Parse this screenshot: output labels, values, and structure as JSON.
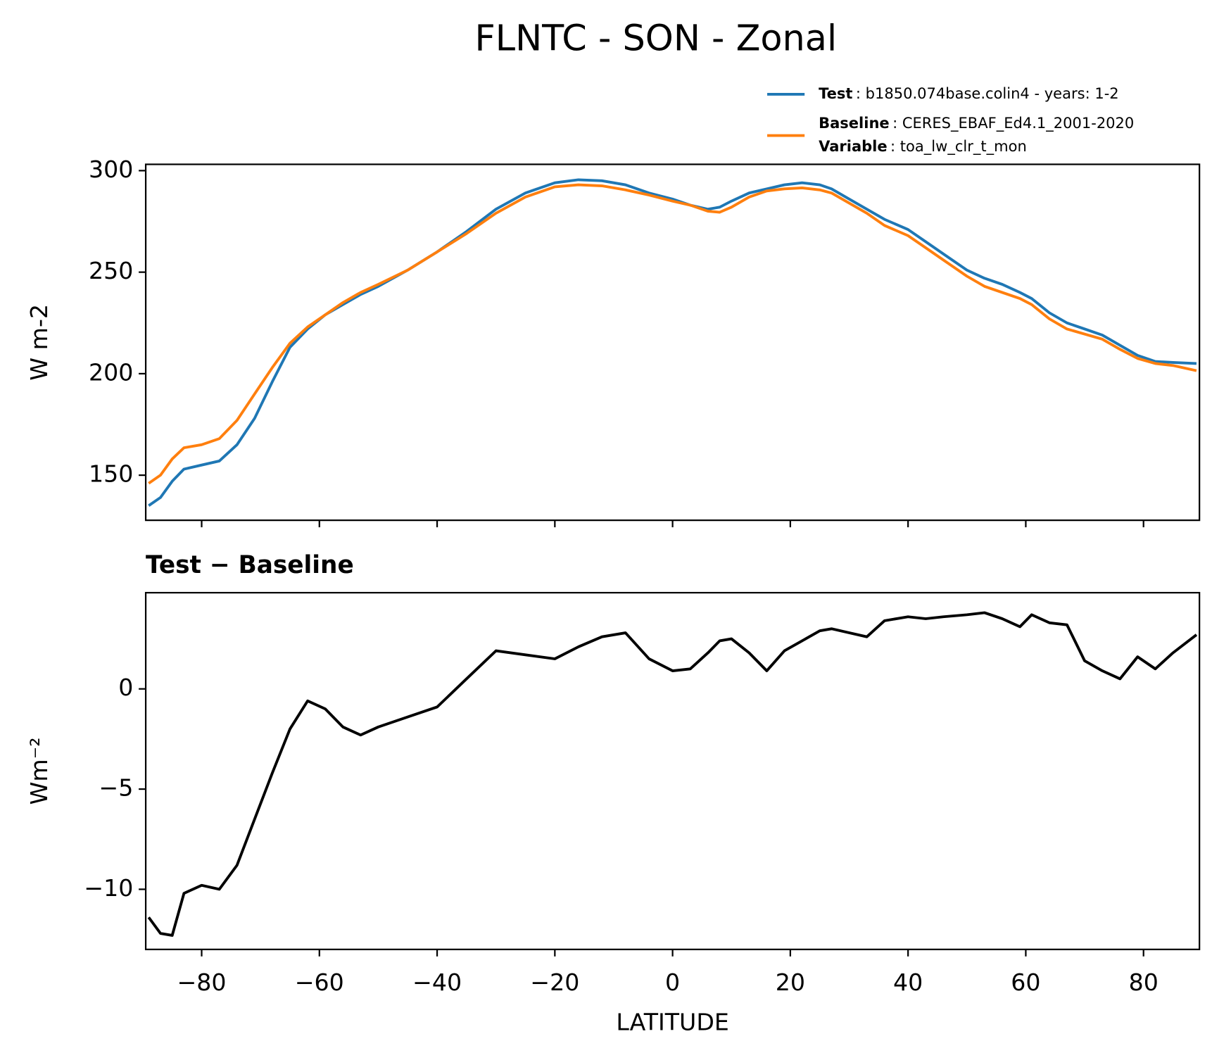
{
  "title": "FLNTC - SON - Zonal",
  "chart_data": [
    {
      "type": "line",
      "ylabel": "W m-2",
      "x": [
        -89,
        -87,
        -85,
        -83,
        -80,
        -77,
        -74,
        -71,
        -68,
        -65,
        -62,
        -59,
        -56,
        -53,
        -50,
        -45,
        -40,
        -35,
        -30,
        -25,
        -20,
        -16,
        -12,
        -8,
        -4,
        0,
        3,
        6,
        8,
        10,
        13,
        16,
        19,
        22,
        25,
        27,
        30,
        33,
        36,
        40,
        43,
        46,
        50,
        53,
        56,
        59,
        61,
        64,
        67,
        70,
        73,
        76,
        79,
        82,
        85,
        89
      ],
      "series": [
        {
          "name": "Test",
          "description": ": b1850.074base.colin4 - years: 1-2",
          "color": "#1f77b4",
          "values": [
            135,
            139,
            147,
            153,
            155,
            157,
            165,
            178,
            196,
            213,
            222,
            229,
            234,
            239,
            243,
            251,
            260,
            270,
            281,
            289,
            294,
            295.5,
            295,
            293,
            289,
            286,
            283,
            281,
            282,
            285,
            289,
            291,
            293,
            294,
            293,
            291,
            286,
            281,
            276,
            271,
            265,
            259,
            251,
            247,
            244,
            240,
            237,
            230,
            225,
            222,
            219,
            214,
            209,
            206,
            205.5,
            205
          ]
        },
        {
          "name": "Baseline",
          "description": ": CERES_EBAF_Ed4.1_2001-2020",
          "color": "#ff7f0e",
          "values": [
            146,
            150,
            158,
            163.5,
            165,
            168,
            177,
            190,
            203,
            215,
            223,
            229,
            235,
            240,
            244,
            251,
            260,
            269,
            279,
            287,
            292,
            293,
            292.5,
            290.5,
            288,
            285,
            283,
            280,
            279.5,
            282,
            287,
            290,
            291,
            291.5,
            290.5,
            289,
            284,
            279,
            273,
            268,
            262,
            256,
            248,
            243,
            240,
            237,
            234,
            227,
            222,
            219.5,
            217,
            212,
            207.5,
            205,
            204,
            201.5
          ]
        }
      ],
      "legend_extra": {
        "name": "Variable",
        "description": ": toa_lw_clr_t_mon"
      },
      "xlim": [
        -89.5,
        89.5
      ],
      "ylim": [
        127.8,
        303.1
      ],
      "xticks": [
        -80,
        -60,
        -40,
        -20,
        0,
        20,
        40,
        60,
        80
      ],
      "xtick_labels": false,
      "yticks": [
        150,
        200,
        250,
        300
      ],
      "grid": false,
      "legend": "upper right"
    },
    {
      "type": "line",
      "title": "Test − Baseline",
      "ylabel": "Wm⁻²",
      "xlabel": "LATITUDE",
      "x": [
        -89,
        -87,
        -85,
        -83,
        -80,
        -77,
        -74,
        -71,
        -68,
        -65,
        -62,
        -59,
        -56,
        -53,
        -50,
        -45,
        -40,
        -35,
        -30,
        -25,
        -20,
        -16,
        -12,
        -8,
        -4,
        0,
        3,
        6,
        8,
        10,
        13,
        16,
        19,
        22,
        25,
        27,
        30,
        33,
        36,
        40,
        43,
        46,
        50,
        53,
        56,
        59,
        61,
        64,
        67,
        70,
        73,
        76,
        79,
        82,
        85,
        89
      ],
      "series": [
        {
          "color": "#000000",
          "values": [
            -11.4,
            -12.2,
            -12.3,
            -10.2,
            -9.8,
            -10.0,
            -8.8,
            -6.5,
            -4.2,
            -2.0,
            -0.6,
            -1.0,
            -1.9,
            -2.3,
            -1.9,
            -1.4,
            -0.9,
            0.5,
            1.9,
            1.7,
            1.5,
            2.1,
            2.6,
            2.8,
            1.5,
            0.9,
            1.0,
            1.8,
            2.4,
            2.5,
            1.8,
            0.9,
            1.9,
            2.4,
            2.9,
            3.0,
            2.8,
            2.6,
            3.4,
            3.6,
            3.5,
            3.6,
            3.7,
            3.8,
            3.5,
            3.1,
            3.7,
            3.3,
            3.2,
            1.4,
            0.9,
            0.5,
            1.6,
            1.0,
            1.8,
            2.7
          ]
        }
      ],
      "xlim": [
        -89.5,
        89.5
      ],
      "ylim": [
        -13.0,
        4.8
      ],
      "xticks": [
        {
          "value": -80,
          "label": "−80"
        },
        {
          "value": -60,
          "label": "−60"
        },
        {
          "value": -40,
          "label": "−40"
        },
        {
          "value": -20,
          "label": "−20"
        },
        0,
        20,
        40,
        60,
        80
      ],
      "xtick_labels": true,
      "yticks": [
        {
          "value": -10,
          "label": "−10"
        },
        {
          "value": -5,
          "label": "−5"
        },
        0
      ],
      "grid": false
    }
  ]
}
